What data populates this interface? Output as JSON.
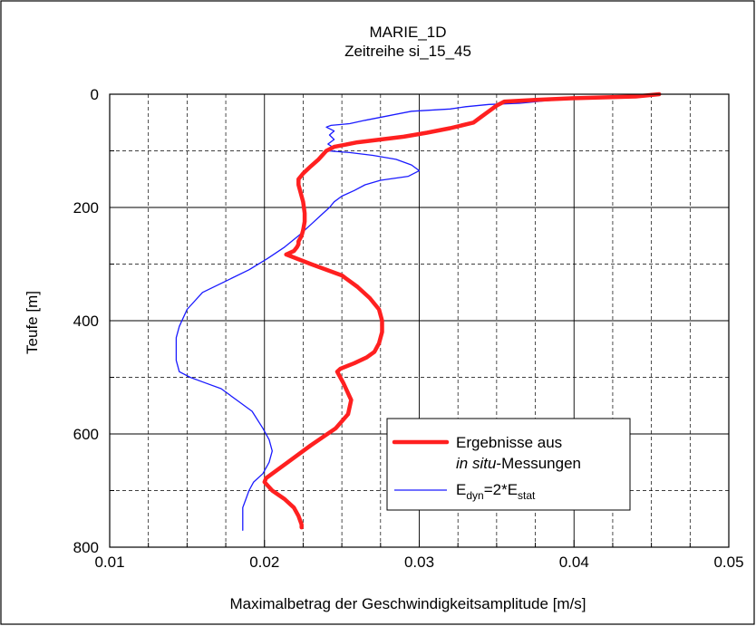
{
  "chart_data": {
    "type": "line",
    "title": "MARIE_1D",
    "subtitle": "Zeitreihe si_15_45",
    "xlabel": "Maximalbetrag der Geschwindigkeitsamplitude [m/s]",
    "ylabel": "Teufe [m]",
    "xlim": [
      0.01,
      0.05
    ],
    "ylim": [
      800,
      0
    ],
    "y_inverted": true,
    "xticks": [
      0.01,
      0.02,
      0.03,
      0.04,
      0.05
    ],
    "xtick_labels": [
      "0.01",
      "0.02",
      "0.03",
      "0.04",
      "0.05"
    ],
    "yticks": [
      0,
      200,
      400,
      600,
      800
    ],
    "ytick_labels": [
      "0",
      "200",
      "400",
      "600",
      "800"
    ],
    "grid": true,
    "legend_position": "bottom-right",
    "series": [
      {
        "name_line1": "Ergebnisse aus",
        "name_line2_italic": "in situ",
        "name_line2_rest": "-Messungen",
        "color": "#ff2020",
        "width": "thick",
        "x": [
          0.0455,
          0.044,
          0.04,
          0.0375,
          0.0355,
          0.035,
          0.0345,
          0.034,
          0.0335,
          0.032,
          0.0305,
          0.029,
          0.0275,
          0.026,
          0.0245,
          0.024,
          0.0235,
          0.023,
          0.0225,
          0.0222,
          0.0222,
          0.0223,
          0.0225,
          0.0226,
          0.0226,
          0.0225,
          0.0224,
          0.0222,
          0.0222,
          0.0221,
          0.0219,
          0.0214,
          0.023,
          0.025,
          0.026,
          0.0268,
          0.0274,
          0.0276,
          0.0276,
          0.0274,
          0.0271,
          0.0266,
          0.0258,
          0.0249,
          0.0247,
          0.0251,
          0.0256,
          0.0254,
          0.0246,
          0.023,
          0.0215,
          0.0201,
          0.02,
          0.0205,
          0.0213,
          0.0219,
          0.0222,
          0.0224,
          0.0224
        ],
        "y": [
          0,
          4,
          7,
          10,
          13,
          20,
          30,
          40,
          50,
          60,
          68,
          75,
          80,
          85,
          93,
          100,
          115,
          127,
          140,
          150,
          160,
          170,
          190,
          210,
          225,
          240,
          250,
          260,
          265,
          270,
          277,
          283,
          300,
          320,
          340,
          360,
          380,
          400,
          420,
          440,
          455,
          465,
          475,
          485,
          490,
          510,
          540,
          565,
          590,
          620,
          650,
          678,
          685,
          700,
          715,
          730,
          745,
          760,
          765
        ]
      },
      {
        "name": "E_dyn=2*E_stat",
        "name_base": "E",
        "name_sub1": "dyn",
        "name_mid": "=2*E",
        "name_sub2": "stat",
        "color": "#1a1aff",
        "width": "thin",
        "x": [
          0.0455,
          0.044,
          0.04,
          0.038,
          0.0365,
          0.0345,
          0.033,
          0.032,
          0.0295,
          0.028,
          0.0265,
          0.0255,
          0.0243,
          0.024,
          0.0245,
          0.0242,
          0.0245,
          0.0241,
          0.0245,
          0.0241,
          0.0255,
          0.027,
          0.0285,
          0.0295,
          0.03,
          0.0293,
          0.0275,
          0.0265,
          0.0258,
          0.025,
          0.0245,
          0.0242,
          0.0236,
          0.023,
          0.0222,
          0.0213,
          0.0202,
          0.019,
          0.0175,
          0.016,
          0.015,
          0.0145,
          0.0143,
          0.0143,
          0.0143,
          0.0145,
          0.0152,
          0.0162,
          0.0172,
          0.0182,
          0.0192,
          0.0199,
          0.0203,
          0.0205,
          0.0203,
          0.0199,
          0.0193,
          0.019,
          0.0188,
          0.0186,
          0.0186,
          0.0186
        ],
        "y": [
          0,
          4,
          8,
          12,
          16,
          18,
          22,
          26,
          30,
          38,
          46,
          52,
          55,
          58,
          65,
          72,
          80,
          88,
          95,
          100,
          103,
          108,
          115,
          125,
          135,
          145,
          152,
          160,
          170,
          180,
          190,
          200,
          215,
          230,
          250,
          270,
          290,
          310,
          330,
          350,
          380,
          410,
          430,
          450,
          470,
          490,
          500,
          510,
          520,
          540,
          560,
          590,
          610,
          630,
          650,
          670,
          685,
          700,
          715,
          730,
          750,
          770
        ]
      }
    ]
  }
}
